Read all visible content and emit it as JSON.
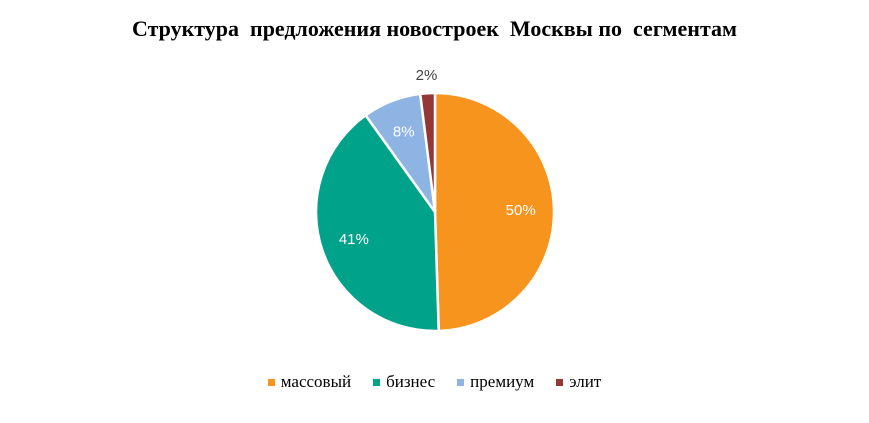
{
  "chart_data": {
    "type": "pie",
    "title": "Структура  предложения новостроек  Москвы по  сегментам",
    "categories": [
      "массовый",
      "бизнес",
      "премиум",
      "элит"
    ],
    "values": [
      50,
      41,
      8,
      2
    ],
    "value_labels": [
      "50%",
      "41%",
      "8%",
      "2%"
    ],
    "colors": [
      "#F7941E",
      "#00A389",
      "#8DB4E2",
      "#953735"
    ],
    "legend_position": "bottom"
  }
}
